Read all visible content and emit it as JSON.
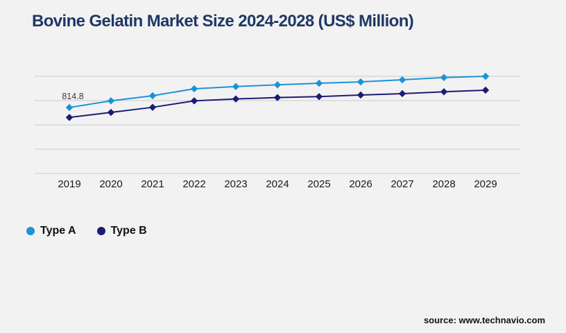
{
  "page": {
    "title": "Bovine Gelatin Market Size 2024-2028 (US$ Million)",
    "source": "source: www.technavio.com",
    "background_color": "#f2f2f3",
    "title_color": "#1f3864",
    "gridline_color": "#c9c9ce",
    "axis_label_color": "#1a1a1a"
  },
  "legend": {
    "items": [
      {
        "label": "Type A",
        "color": "#1b93d6"
      },
      {
        "label": "Type B",
        "color": "#1c1c72"
      }
    ]
  },
  "chart_data": {
    "type": "line",
    "title": "Bovine Gelatin Market Size 2024-2028 (US$ Million)",
    "categories": [
      "2019",
      "2020",
      "2021",
      "2022",
      "2023",
      "2024",
      "2025",
      "2026",
      "2027",
      "2028",
      "2029"
    ],
    "series": [
      {
        "name": "Type A",
        "color": "#1b93d6",
        "marker": "diamond",
        "values": [
          814.8,
          897,
          960,
          1046,
          1074,
          1095,
          1114,
          1131,
          1157,
          1185,
          1200
        ]
      },
      {
        "name": "Type B",
        "color": "#1c1c72",
        "marker": "diamond",
        "values": [
          692,
          754,
          817,
          897,
          920,
          937,
          949,
          969,
          986,
          1009,
          1029
        ]
      }
    ],
    "xlabel": "",
    "ylabel": "",
    "ylim": [
      0,
      1200
    ],
    "gridline_values": [
      0,
      300,
      600,
      900,
      1200
    ],
    "grid": "horizontal-only-unlabeled",
    "legend_position": "bottom-left",
    "annotations": [
      {
        "series": "Type A",
        "category": "2019",
        "text": "814.8"
      }
    ]
  }
}
